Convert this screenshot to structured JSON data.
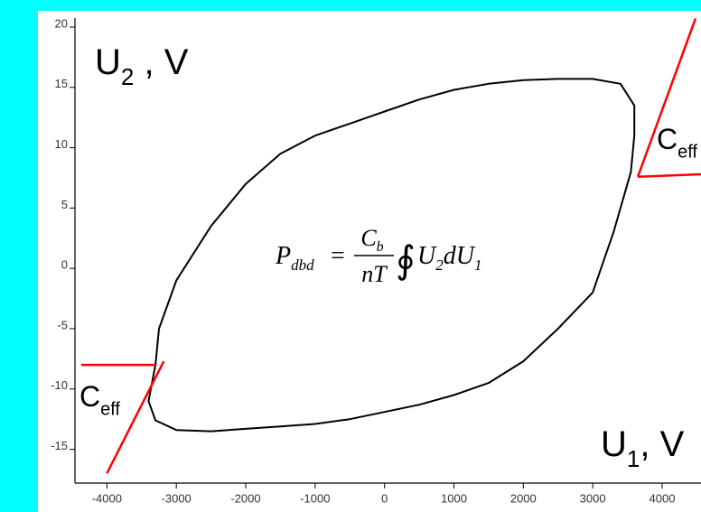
{
  "chart_data": {
    "type": "line",
    "xlim": [
      -4460,
      4560
    ],
    "ylim": [
      -17.8,
      20
    ],
    "xticks": [
      -4000,
      -3000,
      -2000,
      -1000,
      0,
      1000,
      2000,
      3000,
      4000
    ],
    "yticks": [
      20,
      15,
      10,
      5,
      0,
      -5,
      -10,
      -15
    ],
    "series": [
      {
        "color": "#000000",
        "x": [
          -3300,
          -3250,
          -3000,
          -2500,
          -2000,
          -1500,
          -1000,
          -500,
          0,
          500,
          1000,
          1500,
          2000,
          2500,
          3000,
          3400,
          3600,
          3600,
          3550,
          3300,
          3000,
          2500,
          2000,
          1500,
          1000,
          500,
          0,
          -500,
          -1000,
          -1500,
          -2000,
          -2500,
          -3000,
          -3300,
          -3400,
          -3300
        ],
        "values": [
          -8,
          -5,
          -1,
          3.5,
          7,
          9.5,
          11,
          12,
          13,
          14,
          14.8,
          15.3,
          15.6,
          15.7,
          15.7,
          15.3,
          13.5,
          11,
          8,
          3,
          -2,
          -5,
          -7.7,
          -9.5,
          -10.5,
          -11.3,
          -11.9,
          -12.5,
          -12.9,
          -13.1,
          -13.3,
          -13.5,
          -13.4,
          -12.6,
          -11,
          -8
        ]
      },
      {
        "color": "#ff0000",
        "x": [
          -4370,
          -3300,
          null,
          -3180,
          -4000,
          null,
          3650,
          4480,
          null,
          3650,
          4560
        ],
        "values": [
          -8,
          -8,
          null,
          -7.7,
          -17,
          null,
          7.6,
          20.7,
          null,
          7.6,
          7.8
        ]
      }
    ],
    "annotations": [
      {
        "text": "U",
        "sub": "2",
        "tail": " , V"
      },
      {
        "text": "U",
        "sub": "1",
        "tail": ", V"
      },
      {
        "text": "C",
        "sub": "eff"
      },
      {
        "text": "C",
        "sub": "eff"
      }
    ],
    "formula": {
      "lhs": "P",
      "lhs_sub": "dbd",
      "eq": "=",
      "num": "C",
      "num_sub": "b",
      "den": "nT",
      "integral": "∮",
      "u": "U",
      "u_sub": "2",
      "du": "dU",
      "du_sub": "1"
    }
  }
}
